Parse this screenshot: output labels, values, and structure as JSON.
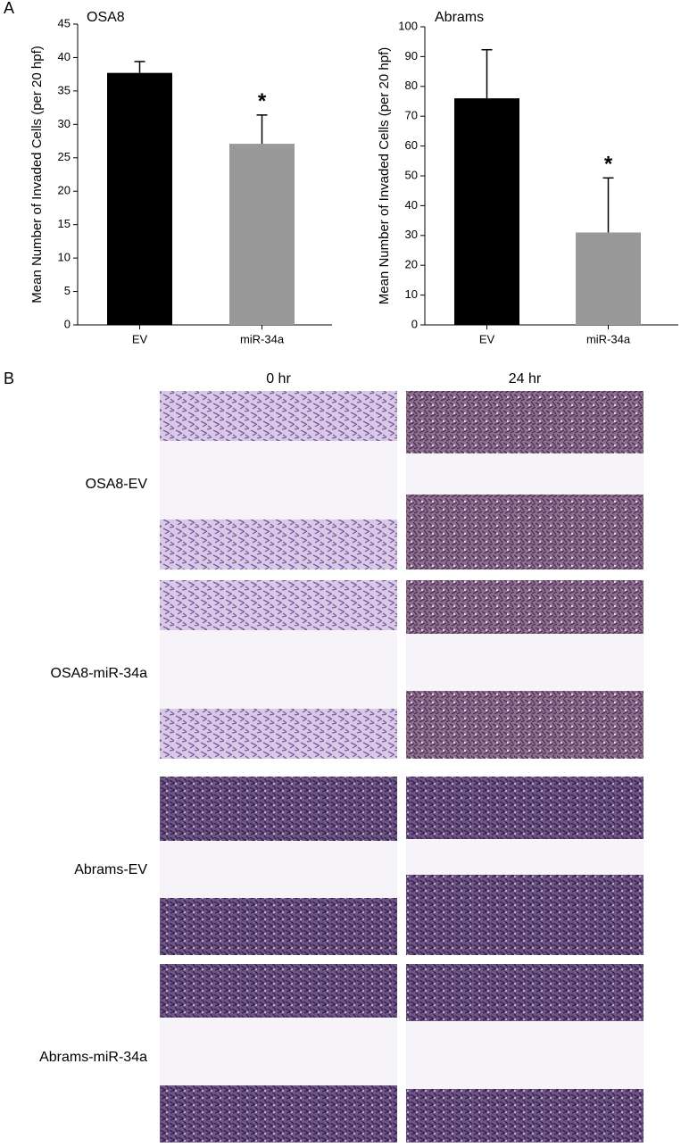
{
  "panel_labels": [
    "A",
    "B"
  ],
  "chart_data": [
    {
      "type": "bar",
      "title": "OSA8",
      "y_label": "Mean Number of Invaded Cells (per 20 hpf)",
      "categories": [
        "EV",
        "miR-34a"
      ],
      "values": [
        37.7,
        27.1
      ],
      "errors": [
        1.7,
        4.3
      ],
      "colors": [
        "#000000",
        "#999999"
      ],
      "ylim": [
        0,
        45
      ],
      "yticks": [
        0,
        5,
        10,
        15,
        20,
        25,
        30,
        35,
        40,
        45
      ],
      "annotations": [
        {
          "text": "*",
          "x": "miR-34a"
        }
      ]
    },
    {
      "type": "bar",
      "title": "Abrams",
      "y_label": "Mean Number of Invaded Cells (per 20 hpf)",
      "categories": [
        "EV",
        "miR-34a"
      ],
      "values": [
        76,
        31
      ],
      "errors": [
        16.3,
        18.3
      ],
      "colors": [
        "#000000",
        "#999999"
      ],
      "ylim": [
        0,
        100
      ],
      "yticks": [
        0,
        10,
        20,
        30,
        40,
        50,
        60,
        70,
        80,
        90,
        100
      ],
      "annotations": [
        {
          "text": "*",
          "x": "miR-34a"
        }
      ]
    }
  ],
  "panel_b": {
    "columns": [
      "0 hr",
      "24 hr"
    ],
    "rows": [
      "OSA8-EV",
      "OSA8-miR-34a",
      "Abrams-EV",
      "Abrams-miR-34a"
    ]
  }
}
